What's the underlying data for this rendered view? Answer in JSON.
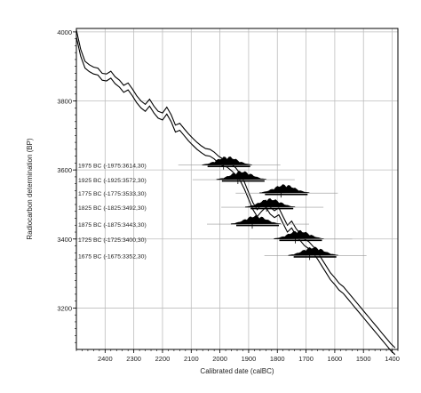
{
  "chart_data": {
    "type": "line",
    "title": "",
    "xlabel": "Calibrated date (calBC)",
    "ylabel": "Radiocarbon determination (BP)",
    "xlim": [
      2500,
      1380
    ],
    "ylim": [
      3080,
      4010
    ],
    "x_ticks": [
      2400,
      2300,
      2200,
      2100,
      2000,
      1900,
      1800,
      1700,
      1600,
      1500,
      1400
    ],
    "y_ticks": [
      4000,
      3800,
      3600,
      3400,
      3200
    ],
    "grid": true,
    "series": [
      {
        "values": [
          [
            2500,
            4005
          ],
          [
            2485,
            3950
          ],
          [
            2470,
            3915
          ],
          [
            2455,
            3905
          ],
          [
            2440,
            3898
          ],
          [
            2425,
            3895
          ],
          [
            2410,
            3880
          ],
          [
            2395,
            3878
          ],
          [
            2380,
            3886
          ],
          [
            2365,
            3870
          ],
          [
            2350,
            3860
          ],
          [
            2335,
            3845
          ],
          [
            2320,
            3852
          ],
          [
            2305,
            3835
          ],
          [
            2290,
            3815
          ],
          [
            2275,
            3800
          ],
          [
            2260,
            3790
          ],
          [
            2245,
            3805
          ],
          [
            2230,
            3785
          ],
          [
            2215,
            3770
          ],
          [
            2200,
            3765
          ],
          [
            2185,
            3782
          ],
          [
            2170,
            3760
          ],
          [
            2155,
            3730
          ],
          [
            2140,
            3735
          ],
          [
            2125,
            3720
          ],
          [
            2110,
            3705
          ],
          [
            2095,
            3692
          ],
          [
            2080,
            3680
          ],
          [
            2065,
            3670
          ],
          [
            2050,
            3662
          ],
          [
            2035,
            3660
          ],
          [
            2020,
            3652
          ],
          [
            2005,
            3640
          ],
          [
            1990,
            3632
          ],
          [
            1975,
            3628
          ],
          [
            1960,
            3618
          ],
          [
            1945,
            3606
          ],
          [
            1930,
            3590
          ],
          [
            1915,
            3565
          ],
          [
            1900,
            3535
          ],
          [
            1885,
            3505
          ],
          [
            1870,
            3485
          ],
          [
            1855,
            3500
          ],
          [
            1840,
            3512
          ],
          [
            1825,
            3492
          ],
          [
            1810,
            3482
          ],
          [
            1795,
            3490
          ],
          [
            1780,
            3465
          ],
          [
            1765,
            3440
          ],
          [
            1750,
            3452
          ],
          [
            1735,
            3430
          ],
          [
            1720,
            3415
          ],
          [
            1705,
            3400
          ],
          [
            1690,
            3392
          ],
          [
            1675,
            3378
          ],
          [
            1660,
            3362
          ],
          [
            1645,
            3342
          ],
          [
            1630,
            3322
          ],
          [
            1615,
            3302
          ],
          [
            1600,
            3288
          ],
          [
            1585,
            3272
          ],
          [
            1570,
            3262
          ],
          [
            1555,
            3247
          ],
          [
            1540,
            3232
          ],
          [
            1525,
            3217
          ],
          [
            1510,
            3202
          ],
          [
            1495,
            3187
          ],
          [
            1480,
            3172
          ],
          [
            1465,
            3157
          ],
          [
            1450,
            3142
          ],
          [
            1435,
            3127
          ],
          [
            1420,
            3112
          ],
          [
            1405,
            3097
          ],
          [
            1390,
            3085
          ]
        ]
      },
      {
        "values": [
          [
            2500,
            3985
          ],
          [
            2485,
            3930
          ],
          [
            2470,
            3895
          ],
          [
            2455,
            3885
          ],
          [
            2440,
            3878
          ],
          [
            2425,
            3875
          ],
          [
            2410,
            3860
          ],
          [
            2395,
            3858
          ],
          [
            2380,
            3866
          ],
          [
            2365,
            3850
          ],
          [
            2350,
            3840
          ],
          [
            2335,
            3825
          ],
          [
            2320,
            3832
          ],
          [
            2305,
            3815
          ],
          [
            2290,
            3795
          ],
          [
            2275,
            3780
          ],
          [
            2260,
            3770
          ],
          [
            2245,
            3785
          ],
          [
            2230,
            3765
          ],
          [
            2215,
            3750
          ],
          [
            2200,
            3745
          ],
          [
            2185,
            3762
          ],
          [
            2170,
            3740
          ],
          [
            2155,
            3710
          ],
          [
            2140,
            3715
          ],
          [
            2125,
            3700
          ],
          [
            2110,
            3685
          ],
          [
            2095,
            3672
          ],
          [
            2080,
            3660
          ],
          [
            2065,
            3650
          ],
          [
            2050,
            3642
          ],
          [
            2035,
            3640
          ],
          [
            2020,
            3632
          ],
          [
            2005,
            3620
          ],
          [
            1990,
            3612
          ],
          [
            1975,
            3608
          ],
          [
            1960,
            3598
          ],
          [
            1945,
            3586
          ],
          [
            1930,
            3570
          ],
          [
            1915,
            3545
          ],
          [
            1900,
            3515
          ],
          [
            1885,
            3485
          ],
          [
            1870,
            3465
          ],
          [
            1855,
            3480
          ],
          [
            1840,
            3492
          ],
          [
            1825,
            3472
          ],
          [
            1810,
            3462
          ],
          [
            1795,
            3470
          ],
          [
            1780,
            3445
          ],
          [
            1765,
            3420
          ],
          [
            1750,
            3432
          ],
          [
            1735,
            3410
          ],
          [
            1720,
            3395
          ],
          [
            1705,
            3380
          ],
          [
            1690,
            3372
          ],
          [
            1675,
            3358
          ],
          [
            1660,
            3342
          ],
          [
            1645,
            3322
          ],
          [
            1630,
            3302
          ],
          [
            1615,
            3282
          ],
          [
            1600,
            3268
          ],
          [
            1585,
            3252
          ],
          [
            1570,
            3242
          ],
          [
            1555,
            3227
          ],
          [
            1540,
            3212
          ],
          [
            1525,
            3197
          ],
          [
            1510,
            3182
          ],
          [
            1495,
            3167
          ],
          [
            1480,
            3152
          ],
          [
            1465,
            3137
          ],
          [
            1450,
            3122
          ],
          [
            1435,
            3107
          ],
          [
            1420,
            3092
          ],
          [
            1405,
            3077
          ],
          [
            1390,
            3065
          ]
        ]
      }
    ],
    "simulated_dates": [
      {
        "label": "1975 BC (-1975:3614,30)",
        "date_bc": 1975,
        "bp": 3614
      },
      {
        "label": "1925 BC (-1925:3572,30)",
        "date_bc": 1925,
        "bp": 3572
      },
      {
        "label": "1775 BC (-1775:3533,30)",
        "date_bc": 1775,
        "bp": 3533
      },
      {
        "label": "1825 BC (-1825:3492,30)",
        "date_bc": 1825,
        "bp": 3492
      },
      {
        "label": "1875 BC (-1875:3443,30)",
        "date_bc": 1875,
        "bp": 3443
      },
      {
        "label": "1725 BC (-1725:3400,30)",
        "date_bc": 1725,
        "bp": 3400
      },
      {
        "label": "1675 BC (-1675:3352,30)",
        "date_bc": 1675,
        "bp": 3352
      }
    ],
    "colors": {
      "line": "#000000",
      "grid": "#bdbdbd",
      "distribution": "#000000"
    }
  }
}
